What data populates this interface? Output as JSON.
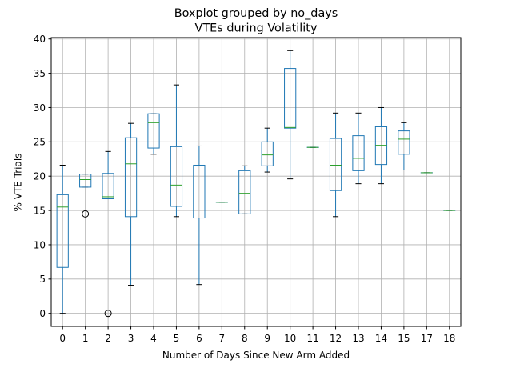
{
  "chart_data": {
    "type": "boxplot",
    "title": "Boxplot grouped by no_days",
    "subtitle": "VTEs during Volatility",
    "xlabel": "Number of Days Since New Arm Added",
    "ylabel": "% VTE Trials",
    "ylim": [
      -1.9,
      40.2
    ],
    "yticks": [
      0,
      5,
      10,
      15,
      20,
      25,
      30,
      35,
      40
    ],
    "grid": true,
    "colors": {
      "box": "#1f77b4",
      "median": "#2ca02c",
      "whisker": "#000000",
      "grid": "#b0b0b0",
      "axis": "#000000"
    },
    "categories": [
      "0",
      "1",
      "2",
      "3",
      "4",
      "5",
      "6",
      "7",
      "8",
      "9",
      "10",
      "11",
      "12",
      "13",
      "14",
      "15",
      "17",
      "18"
    ],
    "boxes": [
      {
        "whislo": 0.0,
        "q1": 6.7,
        "med": 15.5,
        "q3": 17.3,
        "whishi": 21.6,
        "fliers": []
      },
      {
        "whislo": 18.4,
        "q1": 18.4,
        "med": 19.5,
        "q3": 20.3,
        "whishi": 20.3,
        "fliers": [
          14.5
        ]
      },
      {
        "whislo": 16.7,
        "q1": 16.7,
        "med": 17.0,
        "q3": 20.4,
        "whishi": 23.6,
        "fliers": [
          0.0
        ]
      },
      {
        "whislo": 4.1,
        "q1": 14.1,
        "med": 21.8,
        "q3": 25.6,
        "whishi": 27.7,
        "fliers": []
      },
      {
        "whislo": 23.2,
        "q1": 24.1,
        "med": 27.8,
        "q3": 29.1,
        "whishi": 29.1,
        "fliers": []
      },
      {
        "whislo": 14.1,
        "q1": 15.6,
        "med": 18.7,
        "q3": 24.3,
        "whishi": 33.3,
        "fliers": []
      },
      {
        "whislo": 4.2,
        "q1": 13.9,
        "med": 17.4,
        "q3": 21.6,
        "whishi": 24.4,
        "fliers": []
      },
      {
        "whislo": 16.2,
        "q1": 16.2,
        "med": 16.2,
        "q3": 16.2,
        "whishi": 16.2,
        "fliers": []
      },
      {
        "whislo": 14.5,
        "q1": 14.5,
        "med": 17.5,
        "q3": 20.8,
        "whishi": 21.5,
        "fliers": []
      },
      {
        "whislo": 20.6,
        "q1": 21.5,
        "med": 23.1,
        "q3": 25.0,
        "whishi": 27.0,
        "fliers": []
      },
      {
        "whislo": 19.6,
        "q1": 27.0,
        "med": 27.1,
        "q3": 35.7,
        "whishi": 38.3,
        "fliers": []
      },
      {
        "whislo": 24.2,
        "q1": 24.2,
        "med": 24.2,
        "q3": 24.2,
        "whishi": 24.2,
        "fliers": []
      },
      {
        "whislo": 14.1,
        "q1": 17.9,
        "med": 21.6,
        "q3": 25.5,
        "whishi": 29.2,
        "fliers": []
      },
      {
        "whislo": 18.9,
        "q1": 20.8,
        "med": 22.6,
        "q3": 25.9,
        "whishi": 29.2,
        "fliers": []
      },
      {
        "whislo": 18.9,
        "q1": 21.7,
        "med": 24.5,
        "q3": 27.2,
        "whishi": 30.0,
        "fliers": []
      },
      {
        "whislo": 20.9,
        "q1": 23.2,
        "med": 25.4,
        "q3": 26.6,
        "whishi": 27.8,
        "fliers": []
      },
      {
        "whislo": 20.5,
        "q1": 20.5,
        "med": 20.5,
        "q3": 20.5,
        "whishi": 20.5,
        "fliers": []
      },
      {
        "whislo": 15.0,
        "q1": 15.0,
        "med": 15.0,
        "q3": 15.0,
        "whishi": 15.0,
        "fliers": []
      }
    ]
  }
}
